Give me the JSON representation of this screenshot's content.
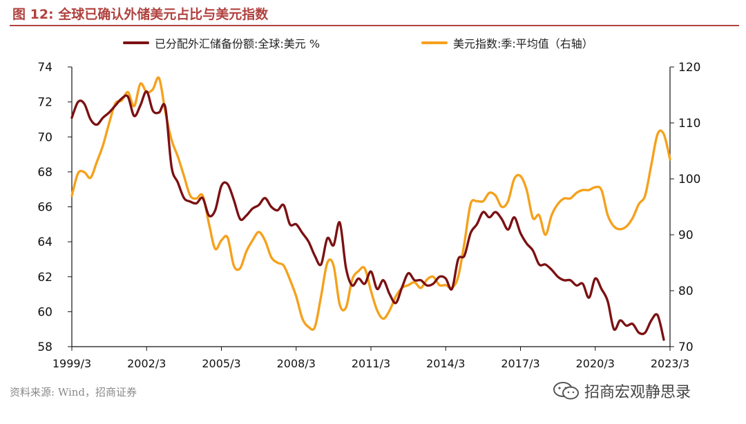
{
  "figure": {
    "title": "图 12:  全球已确认外储美元占比与美元指数",
    "source": "资料来源:  Wind，招商证券",
    "watermark": "招商宏观静思录",
    "colors": {
      "title": "#b0413e",
      "share": "#7b1113",
      "dxy": "#f5a11c"
    }
  },
  "chart_data": {
    "type": "line",
    "x_ticks": [
      "1999/3",
      "2002/3",
      "2005/3",
      "2008/3",
      "2011/3",
      "2014/3",
      "2017/3",
      "2020/3",
      "2023/3"
    ],
    "y_left": {
      "ticks": [
        58,
        60,
        62,
        64,
        66,
        68,
        70,
        72,
        74
      ],
      "ylim": [
        58,
        74
      ]
    },
    "y_right": {
      "ticks": [
        70,
        80,
        90,
        100,
        110,
        120
      ],
      "ylim": [
        70,
        120
      ]
    },
    "series": [
      {
        "name": "已分配外汇储备份额:全球:美元 %",
        "axis": "left",
        "color": "#7b1113",
        "points": [
          [
            "1999/03",
            71.1
          ],
          [
            "1999/06",
            72.0
          ],
          [
            "1999/09",
            71.9
          ],
          [
            "1999/12",
            71.0
          ],
          [
            "2000/03",
            70.7
          ],
          [
            "2000/06",
            71.1
          ],
          [
            "2000/09",
            71.4
          ],
          [
            "2000/12",
            71.8
          ],
          [
            "2001/03",
            72.2
          ],
          [
            "2001/06",
            72.3
          ],
          [
            "2001/09",
            71.2
          ],
          [
            "2001/12",
            71.8
          ],
          [
            "2002/03",
            72.6
          ],
          [
            "2002/06",
            71.5
          ],
          [
            "2002/09",
            71.4
          ],
          [
            "2002/12",
            71.7
          ],
          [
            "2003/03",
            68.3
          ],
          [
            "2003/06",
            67.4
          ],
          [
            "2003/09",
            66.5
          ],
          [
            "2003/12",
            66.3
          ],
          [
            "2004/03",
            66.2
          ],
          [
            "2004/06",
            66.5
          ],
          [
            "2004/09",
            65.5
          ],
          [
            "2004/12",
            65.8
          ],
          [
            "2005/03",
            67.2
          ],
          [
            "2005/06",
            67.3
          ],
          [
            "2005/09",
            66.4
          ],
          [
            "2005/12",
            65.3
          ],
          [
            "2006/03",
            65.5
          ],
          [
            "2006/06",
            65.9
          ],
          [
            "2006/09",
            66.1
          ],
          [
            "2006/12",
            66.5
          ],
          [
            "2007/03",
            66.0
          ],
          [
            "2007/06",
            65.8
          ],
          [
            "2007/09",
            66.1
          ],
          [
            "2007/12",
            65.0
          ],
          [
            "2008/03",
            65.0
          ],
          [
            "2008/06",
            64.5
          ],
          [
            "2008/09",
            64.0
          ],
          [
            "2008/12",
            63.2
          ],
          [
            "2009/03",
            62.7
          ],
          [
            "2009/06",
            64.2
          ],
          [
            "2009/09",
            63.8
          ],
          [
            "2009/12",
            65.1
          ],
          [
            "2010/03",
            62.5
          ],
          [
            "2010/06",
            61.5
          ],
          [
            "2010/09",
            61.9
          ],
          [
            "2010/12",
            61.6
          ],
          [
            "2011/03",
            62.3
          ],
          [
            "2011/06",
            61.3
          ],
          [
            "2011/09",
            61.8
          ],
          [
            "2011/12",
            61.0
          ],
          [
            "2012/03",
            60.5
          ],
          [
            "2012/06",
            61.4
          ],
          [
            "2012/09",
            62.2
          ],
          [
            "2012/12",
            61.8
          ],
          [
            "2013/03",
            61.8
          ],
          [
            "2013/06",
            61.5
          ],
          [
            "2013/09",
            61.6
          ],
          [
            "2013/12",
            62.0
          ],
          [
            "2014/03",
            61.9
          ],
          [
            "2014/06",
            61.3
          ],
          [
            "2014/09",
            63.0
          ],
          [
            "2014/12",
            63.2
          ],
          [
            "2015/03",
            64.5
          ],
          [
            "2015/06",
            65.0
          ],
          [
            "2015/09",
            65.7
          ],
          [
            "2015/12",
            65.4
          ],
          [
            "2016/03",
            65.7
          ],
          [
            "2016/06",
            65.3
          ],
          [
            "2016/09",
            64.7
          ],
          [
            "2016/12",
            65.4
          ],
          [
            "2017/03",
            64.5
          ],
          [
            "2017/06",
            63.9
          ],
          [
            "2017/09",
            63.5
          ],
          [
            "2017/12",
            62.7
          ],
          [
            "2018/03",
            62.7
          ],
          [
            "2018/06",
            62.4
          ],
          [
            "2018/09",
            62.0
          ],
          [
            "2018/12",
            61.8
          ],
          [
            "2019/03",
            61.8
          ],
          [
            "2019/06",
            61.5
          ],
          [
            "2019/09",
            61.6
          ],
          [
            "2019/12",
            60.8
          ],
          [
            "2020/03",
            61.9
          ],
          [
            "2020/06",
            61.3
          ],
          [
            "2020/09",
            60.6
          ],
          [
            "2020/12",
            59.0
          ],
          [
            "2021/03",
            59.5
          ],
          [
            "2021/06",
            59.2
          ],
          [
            "2021/09",
            59.3
          ],
          [
            "2021/12",
            58.8
          ],
          [
            "2022/03",
            58.8
          ],
          [
            "2022/06",
            59.5
          ],
          [
            "2022/09",
            59.8
          ],
          [
            "2022/12",
            58.4
          ]
        ]
      },
      {
        "name": "美元指数:季:平均值（右轴）",
        "axis": "right",
        "color": "#f5a11c",
        "points": [
          [
            "1999/03",
            97.0
          ],
          [
            "1999/06",
            101.0
          ],
          [
            "1999/09",
            101.2
          ],
          [
            "1999/12",
            100.2
          ],
          [
            "2000/03",
            103.0
          ],
          [
            "2000/06",
            106.0
          ],
          [
            "2000/09",
            110.0
          ],
          [
            "2000/12",
            113.5
          ],
          [
            "2001/03",
            114.0
          ],
          [
            "2001/06",
            115.5
          ],
          [
            "2001/09",
            113.0
          ],
          [
            "2001/12",
            117.0
          ],
          [
            "2002/03",
            115.5
          ],
          [
            "2002/06",
            116.0
          ],
          [
            "2002/09",
            118.0
          ],
          [
            "2002/12",
            112.0
          ],
          [
            "2003/03",
            107.0
          ],
          [
            "2003/06",
            104.0
          ],
          [
            "2003/09",
            100.5
          ],
          [
            "2003/12",
            97.0
          ],
          [
            "2004/03",
            96.5
          ],
          [
            "2004/06",
            97.0
          ],
          [
            "2004/09",
            92.0
          ],
          [
            "2004/12",
            87.5
          ],
          [
            "2005/03",
            89.0
          ],
          [
            "2005/06",
            89.5
          ],
          [
            "2005/09",
            84.5
          ],
          [
            "2005/12",
            84.0
          ],
          [
            "2006/03",
            87.0
          ],
          [
            "2006/06",
            89.0
          ],
          [
            "2006/09",
            90.5
          ],
          [
            "2006/12",
            89.0
          ],
          [
            "2007/03",
            86.0
          ],
          [
            "2007/06",
            85.0
          ],
          [
            "2007/09",
            84.5
          ],
          [
            "2007/12",
            82.0
          ],
          [
            "2008/03",
            79.0
          ],
          [
            "2008/06",
            75.0
          ],
          [
            "2008/09",
            73.5
          ],
          [
            "2008/12",
            73.5
          ],
          [
            "2009/03",
            79.0
          ],
          [
            "2009/06",
            85.0
          ],
          [
            "2009/09",
            84.5
          ],
          [
            "2009/12",
            77.5
          ],
          [
            "2010/03",
            77.0
          ],
          [
            "2010/06",
            82.0
          ],
          [
            "2010/09",
            83.5
          ],
          [
            "2010/12",
            84.0
          ],
          [
            "2011/03",
            80.0
          ],
          [
            "2011/06",
            76.5
          ],
          [
            "2011/09",
            75.0
          ],
          [
            "2011/12",
            76.5
          ],
          [
            "2012/03",
            79.0
          ],
          [
            "2012/06",
            80.5
          ],
          [
            "2012/09",
            81.0
          ],
          [
            "2012/12",
            81.5
          ],
          [
            "2013/03",
            80.5
          ],
          [
            "2013/06",
            82.0
          ],
          [
            "2013/09",
            82.5
          ],
          [
            "2013/12",
            81.0
          ],
          [
            "2014/03",
            81.0
          ],
          [
            "2014/06",
            80.5
          ],
          [
            "2014/09",
            82.5
          ],
          [
            "2014/12",
            88.5
          ],
          [
            "2015/03",
            95.5
          ],
          [
            "2015/06",
            96.0
          ],
          [
            "2015/09",
            96.0
          ],
          [
            "2015/12",
            97.5
          ],
          [
            "2016/03",
            97.0
          ],
          [
            "2016/06",
            95.0
          ],
          [
            "2016/09",
            96.0
          ],
          [
            "2016/12",
            100.0
          ],
          [
            "2017/03",
            100.5
          ],
          [
            "2017/06",
            98.0
          ],
          [
            "2017/09",
            93.0
          ],
          [
            "2017/12",
            93.5
          ],
          [
            "2018/03",
            90.0
          ],
          [
            "2018/06",
            93.5
          ],
          [
            "2018/09",
            95.5
          ],
          [
            "2018/12",
            96.5
          ],
          [
            "2019/03",
            96.5
          ],
          [
            "2019/06",
            97.5
          ],
          [
            "2019/09",
            98.0
          ],
          [
            "2019/12",
            98.0
          ],
          [
            "2020/03",
            98.5
          ],
          [
            "2020/06",
            98.0
          ],
          [
            "2020/09",
            93.5
          ],
          [
            "2020/12",
            91.5
          ],
          [
            "2021/03",
            91.0
          ],
          [
            "2021/06",
            91.5
          ],
          [
            "2021/09",
            93.0
          ],
          [
            "2021/12",
            95.5
          ],
          [
            "2022/03",
            97.0
          ],
          [
            "2022/06",
            102.5
          ],
          [
            "2022/09",
            108.0
          ],
          [
            "2022/12",
            108.0
          ],
          [
            "2023/03",
            103.5
          ]
        ]
      }
    ],
    "legend_position": "top",
    "grid": false
  }
}
